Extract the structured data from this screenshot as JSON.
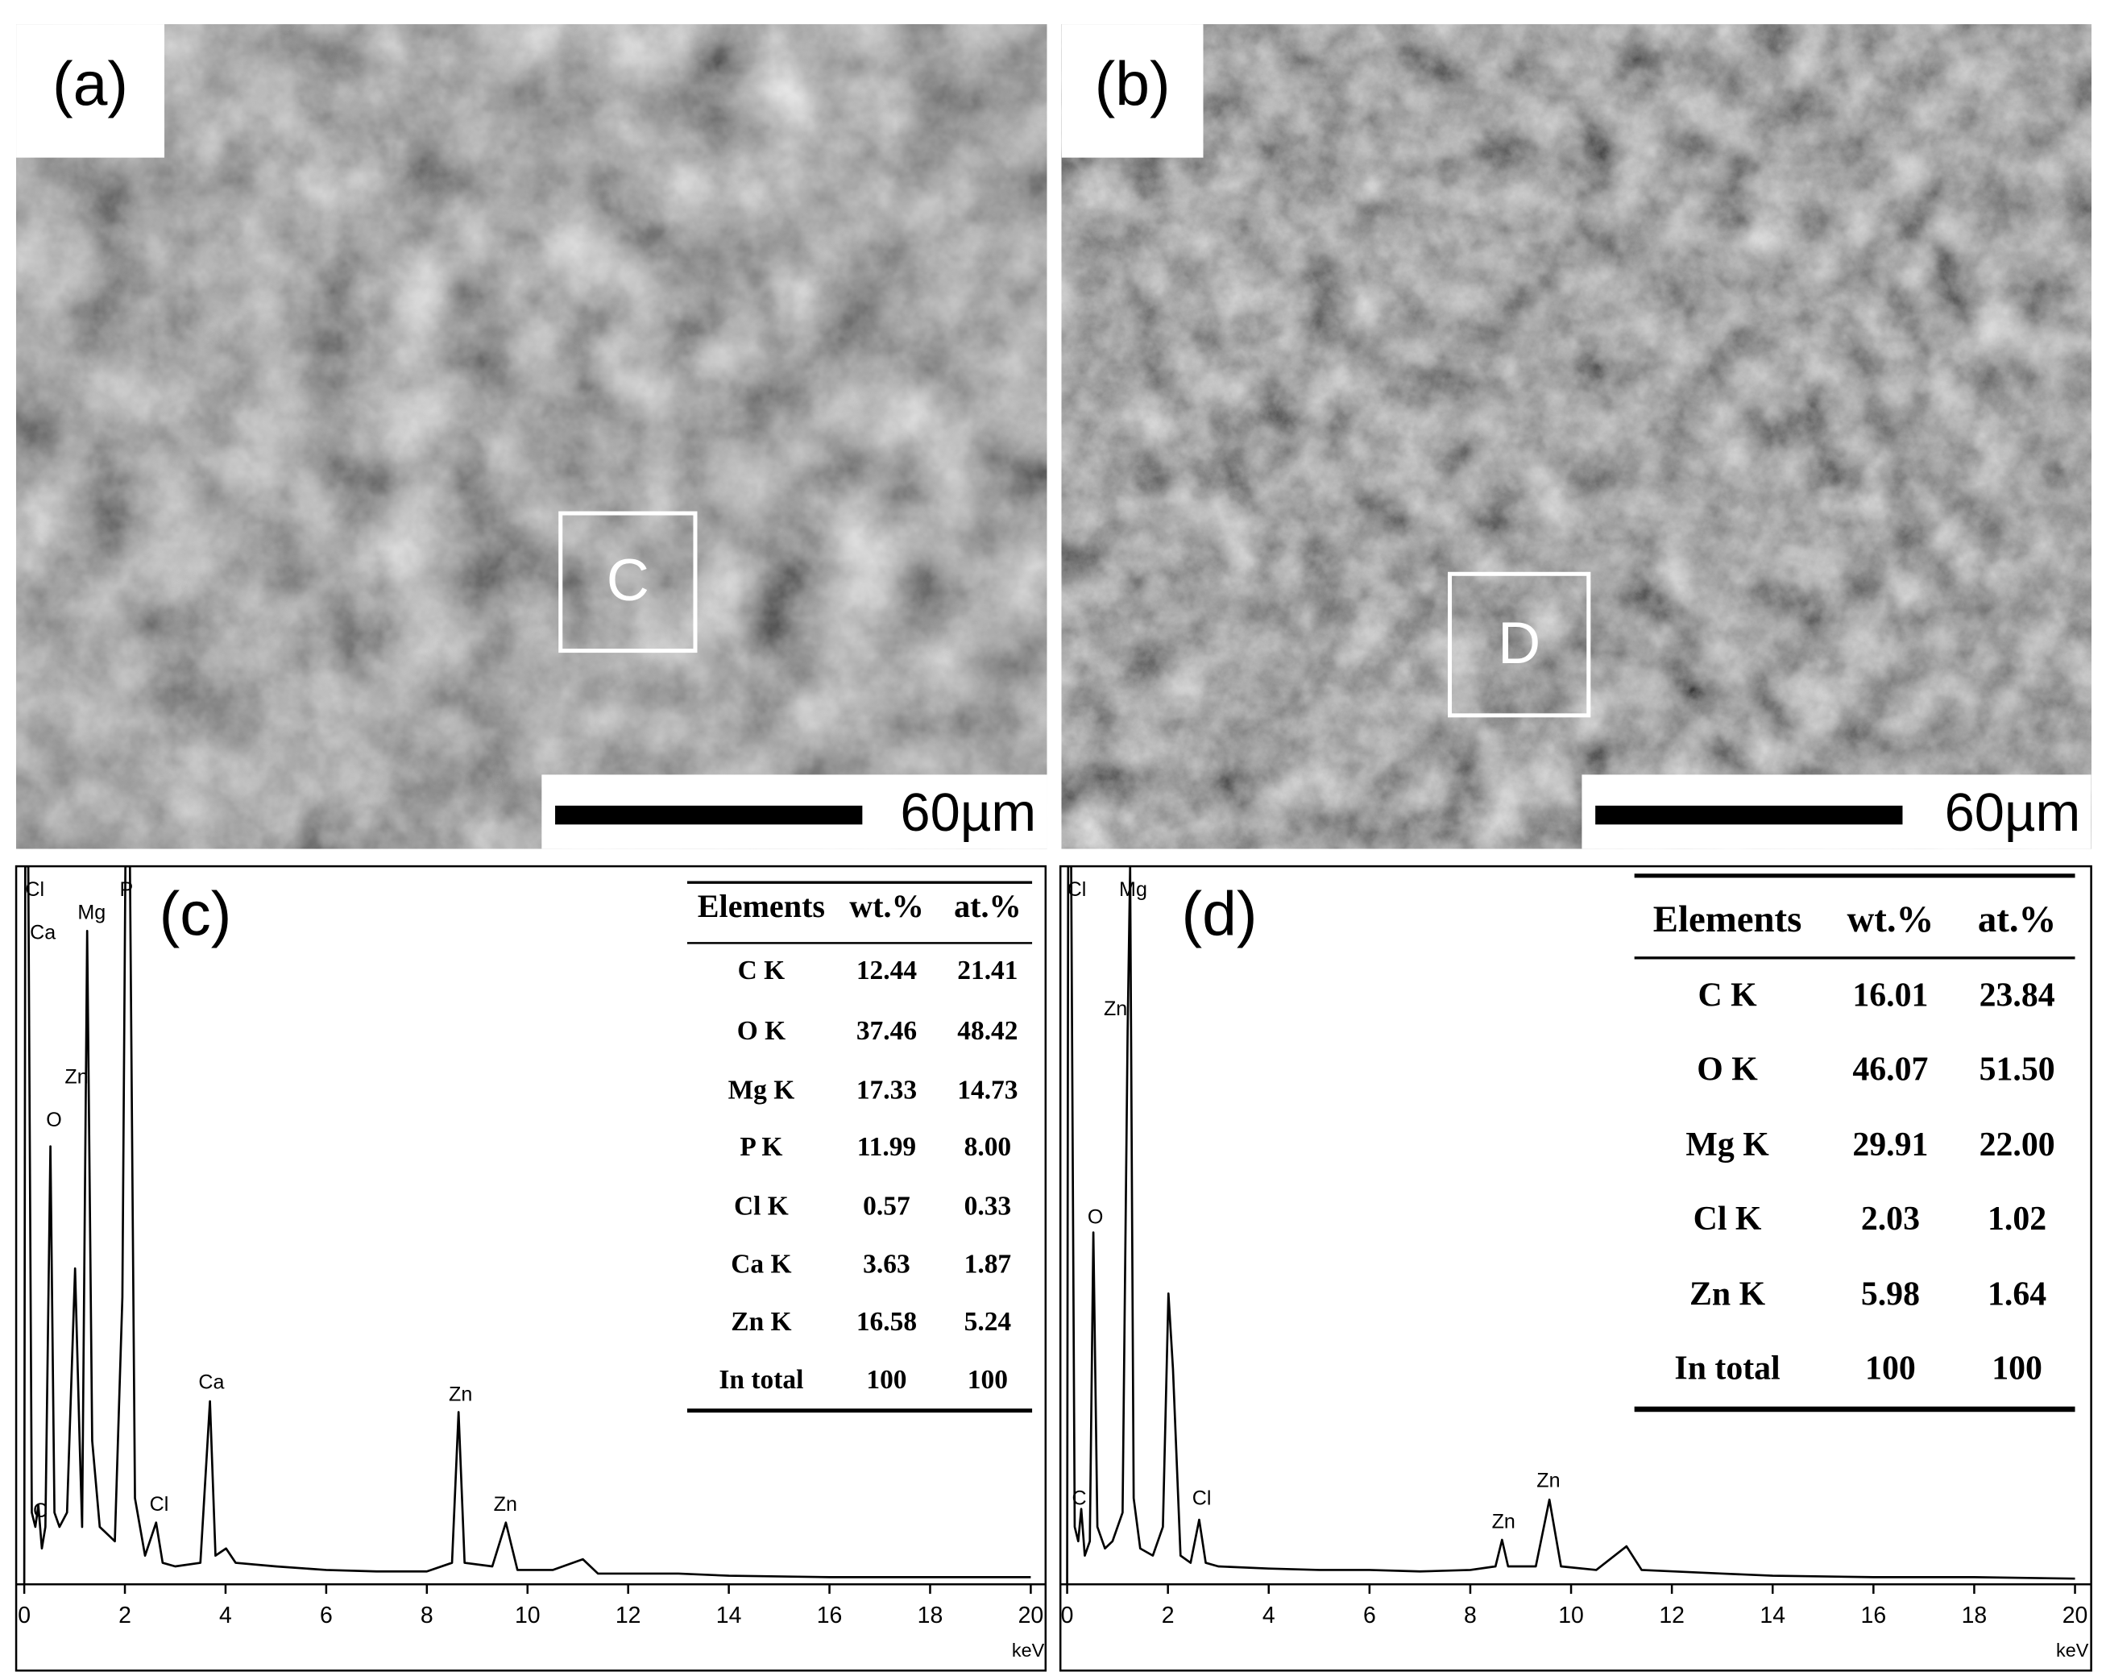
{
  "panels": [
    {
      "label": "(a)",
      "region_label": "C",
      "scale_bar": "60µm"
    },
    {
      "label": "(b)",
      "region_label": "D",
      "scale_bar": "60µm"
    }
  ],
  "chart_data": [
    {
      "type": "line",
      "label": "(c)",
      "x_label": "keV",
      "x": [
        0,
        0.02,
        0.08,
        0.15,
        0.22,
        0.28,
        0.35,
        0.42,
        0.52,
        0.6,
        0.7,
        0.85,
        1.01,
        1.1,
        1.15,
        1.25,
        1.35,
        1.5,
        1.8,
        1.95,
        2.01,
        2.1,
        2.2,
        2.4,
        2.62,
        2.75,
        3.0,
        3.5,
        3.69,
        3.8,
        4.01,
        4.2,
        5,
        6,
        7,
        8,
        8.5,
        8.63,
        8.75,
        9.3,
        9.57,
        9.8,
        10.5,
        11.1,
        11.4,
        13,
        14,
        16,
        18,
        20
      ],
      "series": [
        {
          "color": "#000000",
          "values": [
            0,
            100,
            100,
            10,
            8,
            11,
            5,
            8,
            61,
            10,
            8,
            10,
            44,
            20,
            8,
            91,
            20,
            8,
            6,
            40,
            100,
            100,
            12,
            4,
            8.6,
            3,
            2.5,
            3,
            25.5,
            4,
            5,
            3,
            2.5,
            2,
            1.8,
            1.8,
            3,
            24,
            3,
            2.5,
            8.6,
            2,
            2,
            3.5,
            1.5,
            1.5,
            1.2,
            1,
            1,
            1
          ]
        }
      ],
      "xlim": [
        0,
        20
      ],
      "xticks": [
        0,
        2,
        4,
        6,
        8,
        10,
        12,
        14,
        16,
        18,
        20
      ],
      "ylim": [
        0,
        100
      ],
      "annotations": [
        {
          "text": "Cl",
          "x": 0.21,
          "y": 96.6
        },
        {
          "text": "Ca",
          "x": 0.37,
          "y": 90.6
        },
        {
          "text": "Mg",
          "x": 1.34,
          "y": 93.4
        },
        {
          "text": "P",
          "x": 2.03,
          "y": 96.6
        },
        {
          "text": "Zn",
          "x": 1.04,
          "y": 70.5
        },
        {
          "text": "O",
          "x": 0.59,
          "y": 64.5
        },
        {
          "text": "C",
          "x": 0.32,
          "y": 10.1
        },
        {
          "text": "Cl",
          "x": 2.68,
          "y": 11
        },
        {
          "text": "Ca",
          "x": 3.72,
          "y": 28
        },
        {
          "text": "Zn",
          "x": 8.67,
          "y": 26.3
        },
        {
          "text": "Zn",
          "x": 9.56,
          "y": 11
        }
      ],
      "table": {
        "columns": [
          "Elements",
          "wt.%",
          "at.%"
        ],
        "rows": [
          [
            "C K",
            "12.44",
            "21.41"
          ],
          [
            "O K",
            "37.46",
            "48.42"
          ],
          [
            "Mg K",
            "17.33",
            "14.73"
          ],
          [
            "P K",
            "11.99",
            "8.00"
          ],
          [
            "Cl K",
            "0.57",
            "0.33"
          ],
          [
            "Ca K",
            "3.63",
            "1.87"
          ],
          [
            "Zn K",
            "16.58",
            "5.24"
          ],
          [
            "In total",
            "100",
            "100"
          ]
        ]
      }
    },
    {
      "type": "line",
      "label": "(d)",
      "x_label": "keV",
      "x": [
        0,
        0.02,
        0.08,
        0.15,
        0.22,
        0.28,
        0.35,
        0.45,
        0.52,
        0.6,
        0.75,
        0.9,
        1.1,
        1.2,
        1.25,
        1.32,
        1.45,
        1.7,
        1.9,
        2.01,
        2.1,
        2.25,
        2.45,
        2.62,
        2.75,
        3.0,
        4,
        5,
        6,
        7,
        8,
        8.5,
        8.63,
        8.75,
        9.3,
        9.57,
        9.8,
        10.5,
        11.1,
        11.4,
        13,
        14,
        16,
        18,
        20
      ],
      "series": [
        {
          "color": "#000000",
          "values": [
            0,
            100,
            100,
            8,
            6,
            10.5,
            4,
            6,
            49,
            8,
            5,
            6,
            10,
            77,
            100,
            12,
            5,
            4,
            8,
            40.5,
            30,
            4,
            3,
            9,
            3,
            2.5,
            2.2,
            2,
            2,
            1.8,
            2,
            2.5,
            6.2,
            2.5,
            2.5,
            11.8,
            2.5,
            2,
            5.3,
            2,
            1.5,
            1.2,
            1,
            1,
            0.8
          ]
        }
      ],
      "xlim": [
        0,
        20
      ],
      "xticks": [
        0,
        2,
        4,
        6,
        8,
        10,
        12,
        14,
        16,
        18,
        20
      ],
      "ylim": [
        0,
        100
      ],
      "annotations": [
        {
          "text": "Cl",
          "x": 0.19,
          "y": 96.6
        },
        {
          "text": "Mg",
          "x": 1.31,
          "y": 96.6
        },
        {
          "text": "Zn",
          "x": 0.96,
          "y": 80
        },
        {
          "text": "O",
          "x": 0.56,
          "y": 51
        },
        {
          "text": "C",
          "x": 0.24,
          "y": 11.8
        },
        {
          "text": "Cl",
          "x": 2.67,
          "y": 11.8
        },
        {
          "text": "Zn",
          "x": 8.66,
          "y": 8.6
        },
        {
          "text": "Zn",
          "x": 9.55,
          "y": 14.3
        }
      ],
      "table": {
        "columns": [
          "Elements",
          "wt.%",
          "at.%"
        ],
        "rows": [
          [
            "C K",
            "16.01",
            "23.84"
          ],
          [
            "O K",
            "46.07",
            "51.50"
          ],
          [
            "Mg K",
            "29.91",
            "22.00"
          ],
          [
            "Cl K",
            "2.03",
            "1.02"
          ],
          [
            "Zn K",
            "5.98",
            "1.64"
          ],
          [
            "In total",
            "100",
            "100"
          ]
        ]
      }
    }
  ]
}
